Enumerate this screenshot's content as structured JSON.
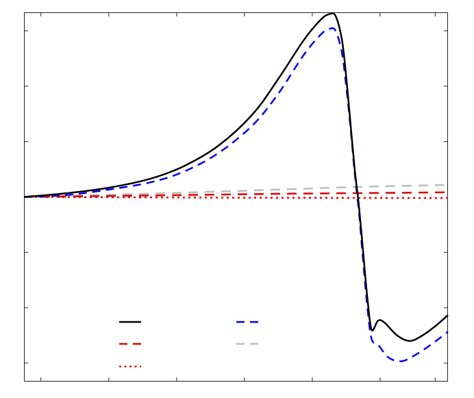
{
  "chart_data": {
    "type": "line",
    "title": "",
    "xlabel": "",
    "ylabel": "",
    "xlim": [
      0,
      1
    ],
    "ylim": [
      -1.0,
      1.0
    ],
    "grid": false,
    "legend": {
      "position": "bottom-center",
      "entries_labeled": false
    },
    "x_ticks": [
      0.04,
      0.2,
      0.36,
      0.52,
      0.68,
      0.84,
      0.97
    ],
    "y_ticks": [
      -0.9,
      -0.6,
      -0.3,
      0.3,
      0.6,
      0.9
    ],
    "series": [
      {
        "color": "#000000",
        "dash": "solid",
        "width": 2.5,
        "points": [
          [
            0,
            0
          ],
          [
            0.1,
            0.02
          ],
          [
            0.2,
            0.05
          ],
          [
            0.3,
            0.1
          ],
          [
            0.38,
            0.17
          ],
          [
            0.46,
            0.28
          ],
          [
            0.54,
            0.45
          ],
          [
            0.6,
            0.64
          ],
          [
            0.66,
            0.85
          ],
          [
            0.7,
            0.96
          ],
          [
            0.72,
            0.99
          ],
          [
            0.735,
            0.98
          ],
          [
            0.75,
            0.85
          ],
          [
            0.76,
            0.65
          ],
          [
            0.77,
            0.4
          ],
          [
            0.78,
            0.15
          ],
          [
            0.79,
            -0.05
          ],
          [
            0.8,
            -0.3
          ],
          [
            0.81,
            -0.55
          ],
          [
            0.82,
            -0.72
          ],
          [
            0.835,
            -0.67
          ],
          [
            0.85,
            -0.68
          ],
          [
            0.88,
            -0.75
          ],
          [
            0.91,
            -0.78
          ],
          [
            0.94,
            -0.75
          ],
          [
            0.97,
            -0.7
          ],
          [
            1.0,
            -0.64
          ]
        ]
      },
      {
        "color": "#0000ee",
        "dash": "dashed",
        "width": 2.5,
        "points": [
          [
            0,
            0
          ],
          [
            0.1,
            0.01
          ],
          [
            0.2,
            0.04
          ],
          [
            0.3,
            0.08
          ],
          [
            0.38,
            0.14
          ],
          [
            0.46,
            0.24
          ],
          [
            0.54,
            0.39
          ],
          [
            0.6,
            0.56
          ],
          [
            0.66,
            0.77
          ],
          [
            0.7,
            0.88
          ],
          [
            0.72,
            0.91
          ],
          [
            0.735,
            0.9
          ],
          [
            0.75,
            0.78
          ],
          [
            0.76,
            0.6
          ],
          [
            0.77,
            0.38
          ],
          [
            0.78,
            0.13
          ],
          [
            0.79,
            -0.08
          ],
          [
            0.8,
            -0.35
          ],
          [
            0.81,
            -0.6
          ],
          [
            0.82,
            -0.77
          ],
          [
            0.835,
            -0.8
          ],
          [
            0.86,
            -0.87
          ],
          [
            0.89,
            -0.89
          ],
          [
            0.92,
            -0.86
          ],
          [
            0.96,
            -0.8
          ],
          [
            1.0,
            -0.73
          ]
        ]
      },
      {
        "color": "#e00000",
        "dash": "long-dash",
        "width": 2.5,
        "points": [
          [
            0,
            0
          ],
          [
            0.2,
            0.005
          ],
          [
            0.4,
            0.011
          ],
          [
            0.6,
            0.017
          ],
          [
            0.8,
            0.021
          ],
          [
            1.0,
            0.025
          ]
        ]
      },
      {
        "color": "#bbbbbb",
        "dash": "long-dash",
        "width": 2.5,
        "points": [
          [
            0,
            0
          ],
          [
            0.2,
            0.012
          ],
          [
            0.4,
            0.025
          ],
          [
            0.6,
            0.04
          ],
          [
            0.8,
            0.055
          ],
          [
            1.0,
            0.065
          ]
        ]
      },
      {
        "color": "#e00000",
        "dash": "dotted",
        "width": 2.5,
        "points": [
          [
            0,
            0
          ],
          [
            0.25,
            -0.002
          ],
          [
            0.5,
            -0.004
          ],
          [
            0.75,
            -0.005
          ],
          [
            1.0,
            -0.006
          ]
        ]
      }
    ],
    "legend_items": [
      {
        "series_index": 0,
        "color": "#000000",
        "dash": "solid"
      },
      {
        "series_index": 1,
        "color": "#0000ee",
        "dash": "dashed"
      },
      {
        "series_index": 2,
        "color": "#e00000",
        "dash": "long-dash"
      },
      {
        "series_index": 3,
        "color": "#bbbbbb",
        "dash": "long-dash"
      },
      {
        "series_index": 4,
        "color": "#e00000",
        "dash": "dotted"
      }
    ]
  }
}
